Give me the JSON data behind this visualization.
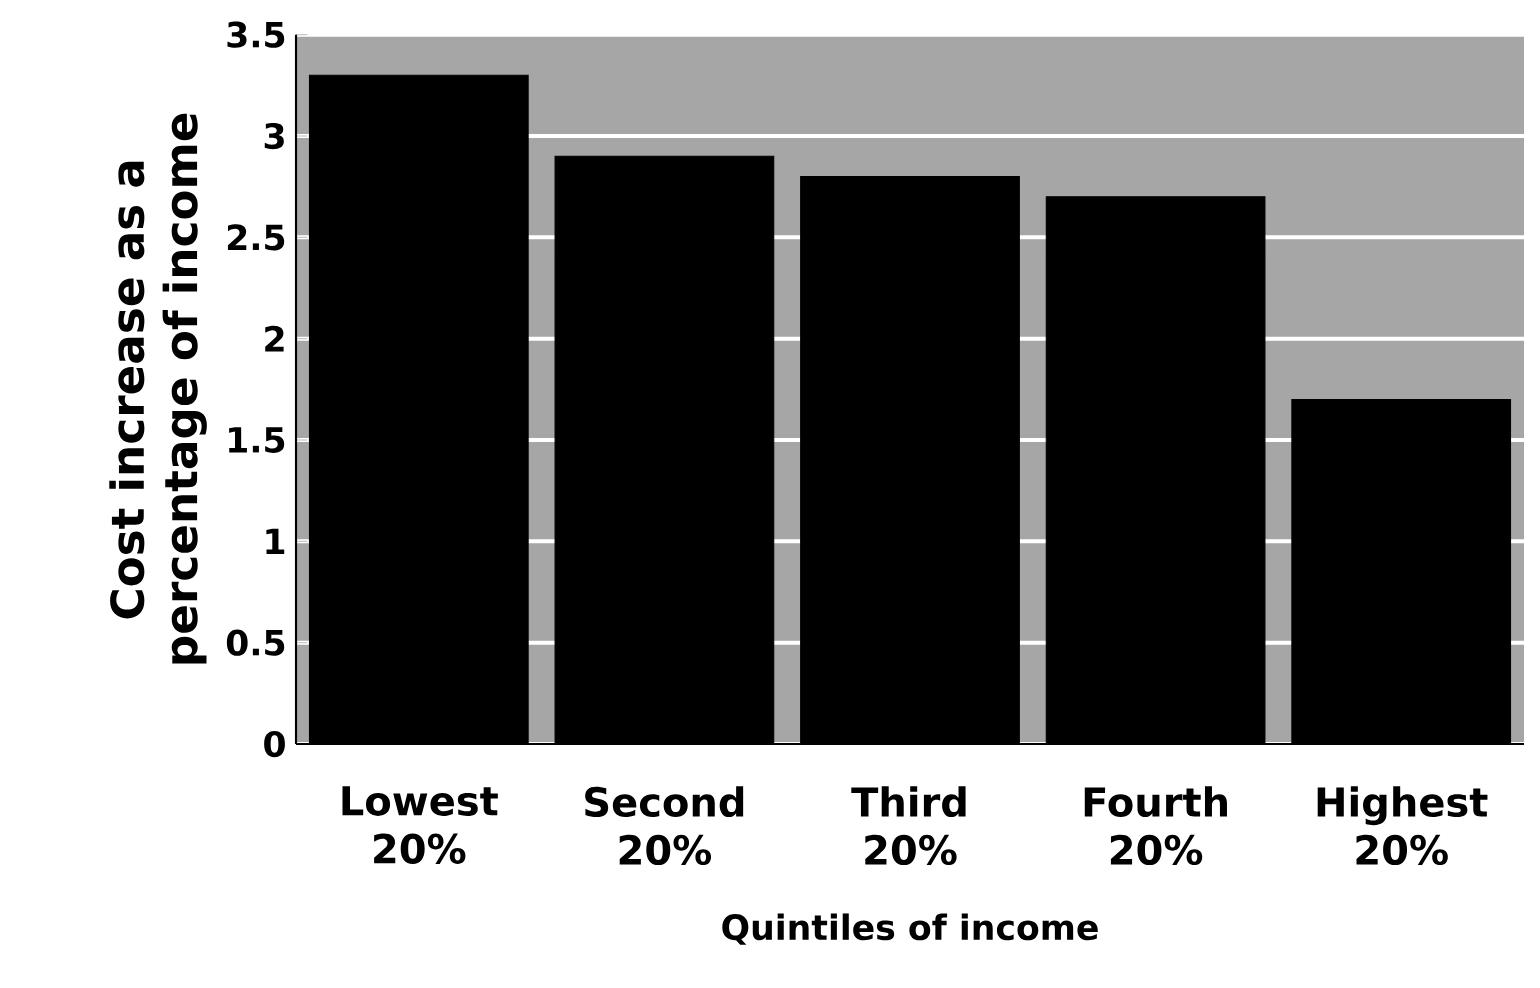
{
  "chart_data": {
    "type": "bar",
    "xlabel": "Quintiles of income",
    "ylabel": "Cost increase as a percentage of income",
    "categories": [
      "Lowest 20%",
      "Second 20%",
      "Third 20%",
      "Fourth 20%",
      "Highest 20%"
    ],
    "values": [
      3.3,
      2.9,
      2.8,
      2.7,
      1.7
    ],
    "color": "#000000",
    "ylim": [
      0,
      3.5
    ],
    "yticks": [
      0,
      0.5,
      1,
      1.5,
      2,
      2.5,
      3,
      3.5
    ],
    "grid": "y"
  }
}
